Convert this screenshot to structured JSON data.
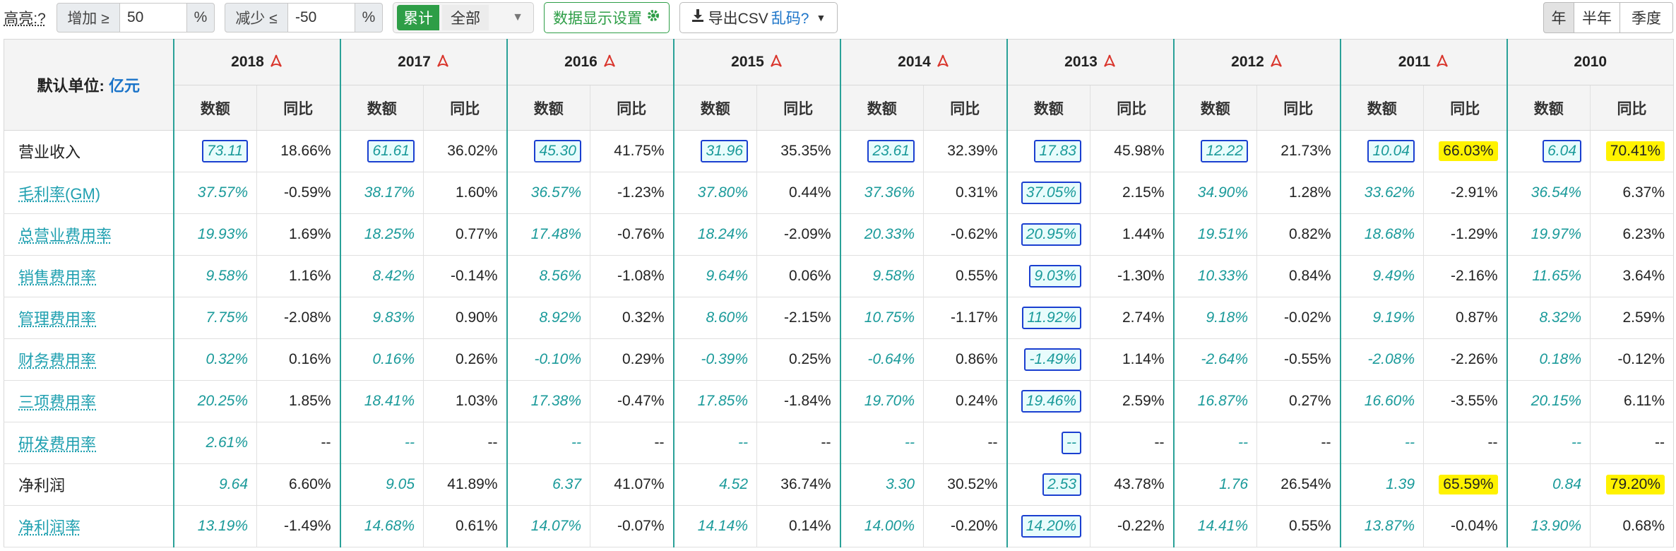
{
  "toolbar": {
    "highlight_label": "高亮:?",
    "increase_label": "增加 ≥",
    "increase_value": "50",
    "increase_unit": "%",
    "decrease_label": "减少 ≤",
    "decrease_value": "-50",
    "decrease_unit": "%",
    "cumulative_label": "累计",
    "all_label": "全部",
    "data_settings_label": "数据显示设置",
    "export_label": "导出CSV",
    "garbled_label": "乱码?",
    "period_year": "年",
    "period_half": "半年",
    "period_quarter": "季度"
  },
  "table": {
    "unit_label": "默认单位:",
    "unit_value": "亿元",
    "sub_headers": {
      "value": "数额",
      "yoy": "同比"
    },
    "years": [
      "2018",
      "2017",
      "2016",
      "2015",
      "2014",
      "2013",
      "2012",
      "2011",
      "2010"
    ],
    "rows": [
      {
        "label": "营业收入",
        "link": false,
        "cells": [
          [
            "73.11",
            "18.66%"
          ],
          [
            "61.61",
            "36.02%"
          ],
          [
            "45.30",
            "41.75%"
          ],
          [
            "31.96",
            "35.35%"
          ],
          [
            "23.61",
            "32.39%"
          ],
          [
            "17.83",
            "45.98%"
          ],
          [
            "12.22",
            "21.73%"
          ],
          [
            "10.04",
            "66.03%"
          ],
          [
            "6.04",
            "70.41%"
          ]
        ]
      },
      {
        "label": "毛利率(GM)",
        "link": true,
        "cells": [
          [
            "37.57%",
            "-0.59%"
          ],
          [
            "38.17%",
            "1.60%"
          ],
          [
            "36.57%",
            "-1.23%"
          ],
          [
            "37.80%",
            "0.44%"
          ],
          [
            "37.36%",
            "0.31%"
          ],
          [
            "37.05%",
            "2.15%"
          ],
          [
            "34.90%",
            "1.28%"
          ],
          [
            "33.62%",
            "-2.91%"
          ],
          [
            "36.54%",
            "6.37%"
          ]
        ]
      },
      {
        "label": "总营业费用率",
        "link": true,
        "cells": [
          [
            "19.93%",
            "1.69%"
          ],
          [
            "18.25%",
            "0.77%"
          ],
          [
            "17.48%",
            "-0.76%"
          ],
          [
            "18.24%",
            "-2.09%"
          ],
          [
            "20.33%",
            "-0.62%"
          ],
          [
            "20.95%",
            "1.44%"
          ],
          [
            "19.51%",
            "0.82%"
          ],
          [
            "18.68%",
            "-1.29%"
          ],
          [
            "19.97%",
            "6.23%"
          ]
        ]
      },
      {
        "label": "销售费用率",
        "link": true,
        "cells": [
          [
            "9.58%",
            "1.16%"
          ],
          [
            "8.42%",
            "-0.14%"
          ],
          [
            "8.56%",
            "-1.08%"
          ],
          [
            "9.64%",
            "0.06%"
          ],
          [
            "9.58%",
            "0.55%"
          ],
          [
            "9.03%",
            "-1.30%"
          ],
          [
            "10.33%",
            "0.84%"
          ],
          [
            "9.49%",
            "-2.16%"
          ],
          [
            "11.65%",
            "3.64%"
          ]
        ]
      },
      {
        "label": "管理费用率",
        "link": true,
        "cells": [
          [
            "7.75%",
            "-2.08%"
          ],
          [
            "9.83%",
            "0.90%"
          ],
          [
            "8.92%",
            "0.32%"
          ],
          [
            "8.60%",
            "-2.15%"
          ],
          [
            "10.75%",
            "-1.17%"
          ],
          [
            "11.92%",
            "2.74%"
          ],
          [
            "9.18%",
            "-0.02%"
          ],
          [
            "9.19%",
            "0.87%"
          ],
          [
            "8.32%",
            "2.59%"
          ]
        ]
      },
      {
        "label": "财务费用率",
        "link": true,
        "cells": [
          [
            "0.32%",
            "0.16%"
          ],
          [
            "0.16%",
            "0.26%"
          ],
          [
            "-0.10%",
            "0.29%"
          ],
          [
            "-0.39%",
            "0.25%"
          ],
          [
            "-0.64%",
            "0.86%"
          ],
          [
            "-1.49%",
            "1.14%"
          ],
          [
            "-2.64%",
            "-0.55%"
          ],
          [
            "-2.08%",
            "-2.26%"
          ],
          [
            "0.18%",
            "-0.12%"
          ]
        ]
      },
      {
        "label": "三项费用率",
        "link": true,
        "cells": [
          [
            "20.25%",
            "1.85%"
          ],
          [
            "18.41%",
            "1.03%"
          ],
          [
            "17.38%",
            "-0.47%"
          ],
          [
            "17.85%",
            "-1.84%"
          ],
          [
            "19.70%",
            "0.24%"
          ],
          [
            "19.46%",
            "2.59%"
          ],
          [
            "16.87%",
            "0.27%"
          ],
          [
            "16.60%",
            "-3.55%"
          ],
          [
            "20.15%",
            "6.11%"
          ]
        ]
      },
      {
        "label": "研发费用率",
        "link": true,
        "cells": [
          [
            "2.61%",
            "--"
          ],
          [
            "--",
            "--"
          ],
          [
            "--",
            "--"
          ],
          [
            "--",
            "--"
          ],
          [
            "--",
            "--"
          ],
          [
            "--",
            "--"
          ],
          [
            "--",
            "--"
          ],
          [
            "--",
            "--"
          ],
          [
            "--",
            "--"
          ]
        ]
      },
      {
        "label": "净利润",
        "link": false,
        "cells": [
          [
            "9.64",
            "6.60%"
          ],
          [
            "9.05",
            "41.89%"
          ],
          [
            "6.37",
            "41.07%"
          ],
          [
            "4.52",
            "36.74%"
          ],
          [
            "3.30",
            "30.52%"
          ],
          [
            "2.53",
            "43.78%"
          ],
          [
            "1.76",
            "26.54%"
          ],
          [
            "1.39",
            "65.59%"
          ],
          [
            "0.84",
            "79.20%"
          ]
        ]
      },
      {
        "label": "净利润率",
        "link": true,
        "cells": [
          [
            "13.19%",
            "-1.49%"
          ],
          [
            "14.68%",
            "0.61%"
          ],
          [
            "14.07%",
            "-0.07%"
          ],
          [
            "14.14%",
            "0.14%"
          ],
          [
            "14.00%",
            "-0.20%"
          ],
          [
            "14.20%",
            "-0.22%"
          ],
          [
            "14.41%",
            "0.55%"
          ],
          [
            "13.87%",
            "-0.04%"
          ],
          [
            "13.90%",
            "0.68%"
          ]
        ]
      }
    ]
  },
  "colors": {
    "accent_green": "#2e9e47",
    "teal": "#1a9a9a",
    "highlight_yellow": "#fff200",
    "box_blue": "#1a3fd0"
  }
}
